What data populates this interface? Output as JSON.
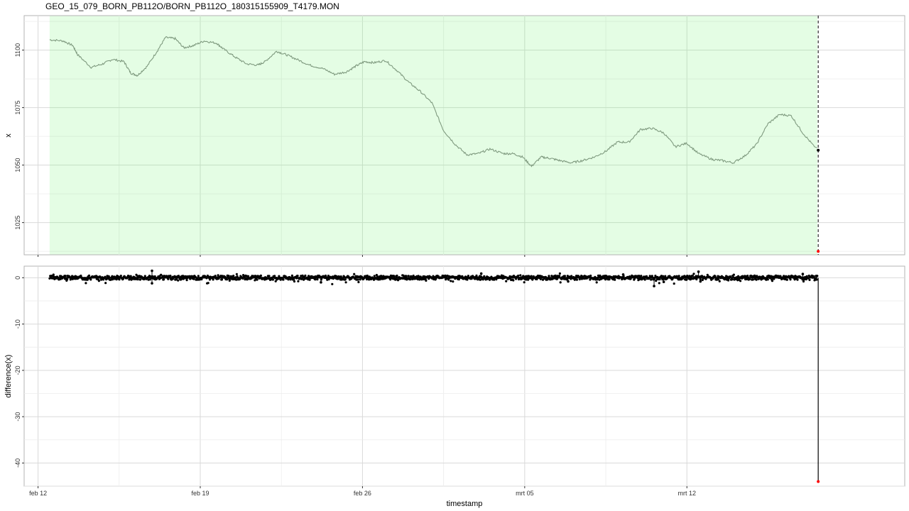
{
  "title": "GEO_15_079_BORN_PB112O/BORN_PB112O_180315155909_T4179.MON",
  "chart_data": [
    {
      "type": "line",
      "panel": "top",
      "title": "GEO_15_079_BORN_PB112O/BORN_PB112O_180315155909_T4179.MON",
      "xlabel": "",
      "ylabel": "x",
      "x_range_days": [
        -0.6,
        37.4
      ],
      "ylim": [
        1011,
        1115
      ],
      "y_ticks": [
        1025,
        1050,
        1075,
        1100
      ],
      "x_ticks": [
        "feb 12",
        "feb 19",
        "feb 26",
        "mrt 05",
        "mrt 12"
      ],
      "highlight_region": {
        "x_start": "feb 12 12:00",
        "x_end": "mrt 17 15:00",
        "color": "#e4fde4"
      },
      "vline": {
        "x": "mrt 17 15:59",
        "style": "dashed"
      },
      "marked_points": [
        {
          "x": "mrt 17 15:59",
          "y": 1056.5,
          "color": "#000000"
        },
        {
          "x": "mrt 17 15:59",
          "y": 1012.5,
          "color": "#ff0000"
        }
      ],
      "line_color": "#7f9a7f",
      "series": [
        {
          "x": [
            "feb 12 12:00",
            "feb 13 02:00",
            "feb 13 12:00",
            "feb 13 17:00",
            "feb 14 07:00",
            "feb 14 19:00",
            "feb 15 05:00",
            "feb 15 17:00",
            "feb 16 00:00",
            "feb 16 07:00",
            "feb 16 17:00",
            "feb 17 04:00",
            "feb 17 12:00",
            "feb 17 22:00",
            "feb 18 07:00",
            "feb 18 17:00",
            "feb 19 04:00",
            "feb 19 17:00",
            "feb 20 00:00",
            "feb 20 12:00",
            "feb 21 00:00",
            "feb 21 12:00",
            "feb 21 19:00",
            "feb 22 07:00",
            "feb 22 17:00",
            "feb 23 04:00",
            "feb 23 17:00",
            "feb 24 07:00",
            "feb 24 19:00",
            "feb 25 07:00",
            "feb 25 17:00",
            "feb 26 02:00",
            "feb 26 12:00",
            "feb 27 00:00",
            "feb 27 12:00",
            "feb 28 00:00",
            "feb 28 12:00",
            "mrt 01 00:00",
            "mrt 01 12:00",
            "mrt 02 00:00",
            "mrt 02 12:00",
            "mrt 03 00:00",
            "mrt 03 12:00",
            "mrt 04 02:00",
            "mrt 04 12:00",
            "mrt 04 22:00",
            "mrt 05 07:00",
            "mrt 05 17:00",
            "mrt 06 02:00",
            "mrt 06 12:00",
            "mrt 07 00:00",
            "mrt 07 12:00",
            "mrt 08 00:00",
            "mrt 08 12:00",
            "mrt 09 00:00",
            "mrt 09 12:00",
            "mrt 10 00:00",
            "mrt 10 12:00",
            "mrt 11 00:00",
            "mrt 11 12:00",
            "mrt 12 00:00",
            "mrt 12 12:00",
            "mrt 13 02:00",
            "mrt 13 12:00",
            "mrt 14 00:00",
            "mrt 14 12:00",
            "mrt 15 00:00",
            "mrt 15 12:00",
            "mrt 16 00:00",
            "mrt 16 12:00",
            "mrt 17 00:00",
            "mrt 17 12:00"
          ],
          "y": [
            1104.5,
            1104,
            1102,
            1098,
            1092.5,
            1094,
            1096,
            1095,
            1090,
            1089,
            1093,
            1100,
            1105.5,
            1105,
            1101,
            1102,
            1104,
            1103,
            1100.5,
            1097,
            1094,
            1093.5,
            1095,
            1099.5,
            1098,
            1096,
            1093.5,
            1092,
            1089.5,
            1090.5,
            1093,
            1095,
            1094.5,
            1095.5,
            1091,
            1086,
            1082,
            1077,
            1065,
            1059,
            1054.5,
            1055,
            1057,
            1055,
            1055,
            1053.5,
            1049.5,
            1053.5,
            1053,
            1052,
            1051,
            1052,
            1053.5,
            1056,
            1060,
            1060,
            1065.5,
            1066,
            1064,
            1058,
            1059.5,
            1055,
            1052.5,
            1052,
            1051,
            1054,
            1059,
            1068,
            1072,
            1071.5,
            1064,
            1058
          ]
        }
      ]
    },
    {
      "type": "scatter",
      "panel": "bottom",
      "xlabel": "timestamp",
      "ylabel": "difference(x)",
      "x_range_days": [
        -0.6,
        37.4
      ],
      "ylim": [
        -45,
        2.5
      ],
      "y_ticks": [
        0,
        -10,
        -20,
        -30,
        -40
      ],
      "x_ticks": [
        "feb 12",
        "feb 19",
        "feb 26",
        "mrt 05",
        "mrt 12"
      ],
      "point_color": "#000000",
      "series": [
        {
          "x_range": [
            "feb 12 12:00",
            "mrt 17 15:00"
          ],
          "y_band": [
            -1.2,
            1
          ],
          "spikes": [
            {
              "x": "feb 16 22:00",
              "y": 1.5
            },
            {
              "x": "feb 16 22:00",
              "y": -1.2
            },
            {
              "x": "feb 24 05:00",
              "y": -1.0
            },
            {
              "x": "mrt 03 03:00",
              "y": 0.9
            },
            {
              "x": "mrt 06 21:00",
              "y": -0.8
            },
            {
              "x": "mrt 09 06:00",
              "y": 0.7
            },
            {
              "x": "mrt 10 14:00",
              "y": -1.8
            },
            {
              "x": "mrt 11 00:00",
              "y": -0.9
            },
            {
              "x": "mrt 12 12:00",
              "y": 1.3
            },
            {
              "x": "mrt 12 14:00",
              "y": -0.8
            },
            {
              "x": "mrt 17 00:00",
              "y": 0.8
            }
          ]
        }
      ],
      "marked_points": [
        {
          "x": "mrt 17 15:59",
          "y": -44,
          "color": "#ff0000"
        }
      ]
    }
  ]
}
